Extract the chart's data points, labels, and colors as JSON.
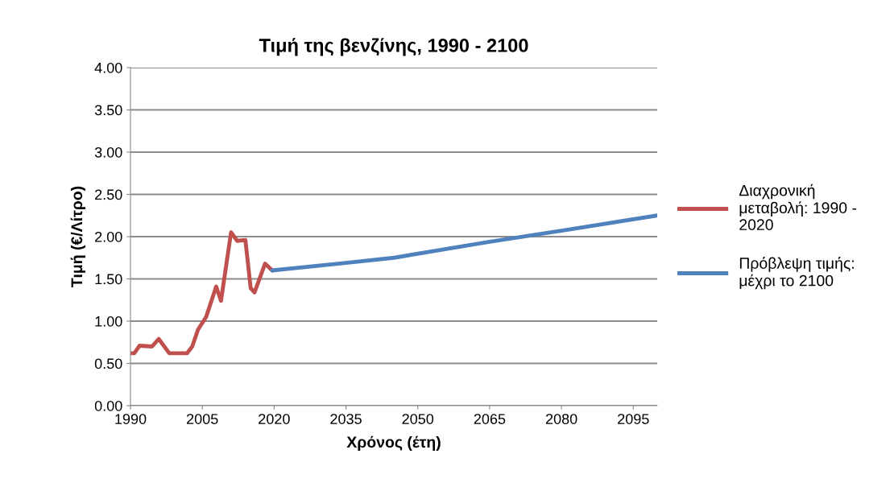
{
  "chart_data": {
    "type": "line",
    "title": "Τιμή της βενζίνης, 1990 - 2100",
    "xlabel": "Χρόνος (έτη)",
    "ylabel": "Τιμή (€/Λίτρο)",
    "xlim": [
      1990,
      2100
    ],
    "xticks": [
      1990,
      2005,
      2020,
      2035,
      2050,
      2065,
      2080,
      2095
    ],
    "ylim": [
      0,
      4
    ],
    "yticks": [
      {
        "value": 0,
        "label": "0.00"
      },
      {
        "value": 0.5,
        "label": "0.50"
      },
      {
        "value": 1,
        "label": "1.00"
      },
      {
        "value": 1.5,
        "label": "1.50"
      },
      {
        "value": 2,
        "label": "2.00"
      },
      {
        "value": 2.5,
        "label": "2.50"
      },
      {
        "value": 3,
        "label": "3.00"
      },
      {
        "value": 3.5,
        "label": "3.50"
      },
      {
        "value": 4,
        "label": "4.00"
      }
    ],
    "grid": "y",
    "legend": "right",
    "marker": "none",
    "line_style": "solid",
    "series": [
      {
        "name": "Διαχρονική μεταβολή: 1990 - 2020",
        "color": "#c0504d",
        "x": [
          1990,
          1990.8,
          1991.9,
          1994.5,
          1995.9,
          1998.1,
          2001.8,
          2002.9,
          2004.1,
          2005.8,
          2007.9,
          2008.9,
          2011.0,
          2012.3,
          2014.0,
          2015.1,
          2015.9,
          2018.1,
          2019.6
        ],
        "values": [
          0.62,
          0.62,
          0.71,
          0.7,
          0.79,
          0.62,
          0.62,
          0.7,
          0.9,
          1.05,
          1.41,
          1.24,
          2.05,
          1.95,
          1.96,
          1.39,
          1.34,
          1.68,
          1.6
        ]
      },
      {
        "name": "Πρόβλεψη τιμής: μέχρι το 2100",
        "color": "#4f81bd",
        "x": [
          2019.6,
          2035,
          2045,
          2065,
          2080,
          2100
        ],
        "values": [
          1.6,
          1.69,
          1.75,
          1.94,
          2.07,
          2.25
        ]
      }
    ]
  }
}
